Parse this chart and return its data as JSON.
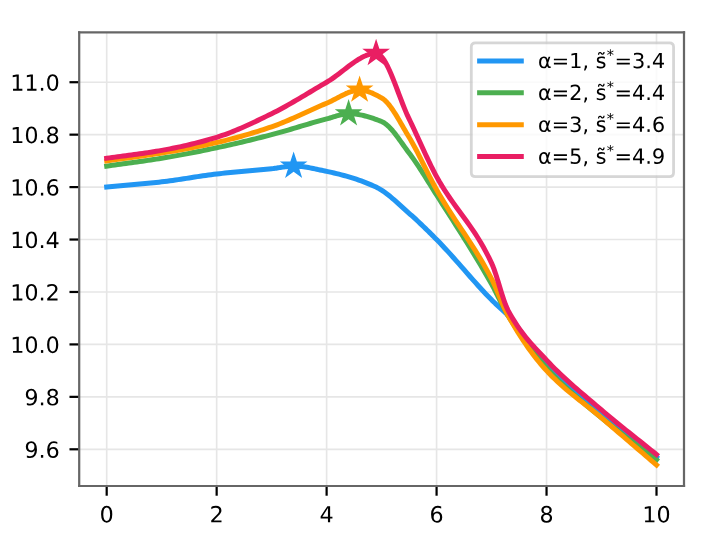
{
  "chart_data": {
    "type": "line",
    "xlim": [
      -0.5,
      10.5
    ],
    "ylim": [
      9.46,
      11.19
    ],
    "xticks": [
      0,
      2,
      4,
      6,
      8,
      10
    ],
    "yticks": [
      9.6,
      9.8,
      {
        "value": 10.0,
        "label": "10.0"
      },
      10.2,
      10.4,
      10.6,
      10.8,
      {
        "value": 11.0,
        "label": "11.0"
      }
    ],
    "grid": true,
    "legend": "top right",
    "line_style": "solid",
    "marker": "none",
    "series": [
      {
        "name": "α=1, s̃$^{*}$=3.4",
        "color": "#2196f3",
        "x": [
          0,
          1,
          2,
          3,
          3.4,
          4,
          4.9,
          5.5,
          6,
          7,
          7.3,
          8,
          9,
          10
        ],
        "values": [
          10.6,
          10.62,
          10.65,
          10.67,
          10.68,
          10.66,
          10.6,
          10.5,
          10.4,
          10.17,
          10.11,
          9.92,
          9.73,
          9.57
        ]
      },
      {
        "name": "α=2, s̃$^{*}$=4.4",
        "color": "#4caf50",
        "x": [
          0,
          1,
          2,
          3,
          4,
          4.4,
          5,
          5.5,
          6,
          7,
          7.3,
          8,
          9,
          10
        ],
        "values": [
          10.68,
          10.71,
          10.75,
          10.8,
          10.86,
          10.88,
          10.85,
          10.73,
          10.57,
          10.23,
          10.11,
          9.91,
          9.72,
          9.56
        ]
      },
      {
        "name": "α=3, s̃$^{*}$=4.6",
        "color": "#ff9800",
        "x": [
          0,
          1,
          2,
          3,
          4,
          4.6,
          5,
          5.5,
          6,
          7,
          7.3,
          8,
          9,
          10
        ],
        "values": [
          10.7,
          10.73,
          10.77,
          10.83,
          10.92,
          10.97,
          10.94,
          10.79,
          10.59,
          10.25,
          10.11,
          9.9,
          9.72,
          9.54
        ]
      },
      {
        "name": "α=5, s̃$^{*}$=4.9",
        "color": "#e91e63",
        "x": [
          0,
          1,
          2,
          3,
          4,
          4.9,
          5.5,
          6,
          7,
          7.3,
          8,
          9,
          10
        ],
        "values": [
          10.71,
          10.74,
          10.79,
          10.88,
          11.0,
          11.11,
          10.86,
          10.64,
          10.31,
          10.13,
          9.94,
          9.75,
          9.58
        ]
      },
      {
        "type": "scatter",
        "marker": "star",
        "color": "#2196f3",
        "x": [
          3.4
        ],
        "values": [
          10.68
        ]
      },
      {
        "type": "scatter",
        "marker": "star",
        "color": "#4caf50",
        "x": [
          4.4
        ],
        "values": [
          10.88
        ]
      },
      {
        "type": "scatter",
        "marker": "star",
        "color": "#ff9800",
        "x": [
          4.6
        ],
        "values": [
          10.97
        ]
      },
      {
        "type": "scatter",
        "marker": "star",
        "color": "#e91e63",
        "x": [
          4.9
        ],
        "values": [
          11.11
        ]
      }
    ]
  }
}
